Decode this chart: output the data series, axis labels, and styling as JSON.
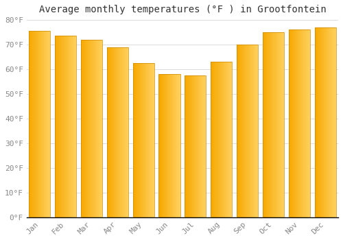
{
  "title": "Average monthly temperatures (°F ) in Grootfontein",
  "months": [
    "Jan",
    "Feb",
    "Mar",
    "Apr",
    "May",
    "Jun",
    "Jul",
    "Aug",
    "Sep",
    "Oct",
    "Nov",
    "Dec"
  ],
  "values": [
    75.5,
    73.5,
    72,
    69,
    62.5,
    58,
    57.5,
    63,
    70,
    75,
    76,
    77
  ],
  "bar_color_left": "#F5A800",
  "bar_color_right": "#FFD060",
  "ylim": [
    0,
    80
  ],
  "yticks": [
    0,
    10,
    20,
    30,
    40,
    50,
    60,
    70,
    80
  ],
  "ytick_labels": [
    "0°F",
    "10°F",
    "20°F",
    "30°F",
    "40°F",
    "50°F",
    "60°F",
    "70°F",
    "80°F"
  ],
  "background_color": "#FFFFFF",
  "grid_color": "#DDDDDD",
  "title_fontsize": 10,
  "tick_fontsize": 8,
  "font_family": "monospace",
  "bar_width": 0.82,
  "bar_edge_color": "#CC8800",
  "bar_edge_linewidth": 0.5
}
